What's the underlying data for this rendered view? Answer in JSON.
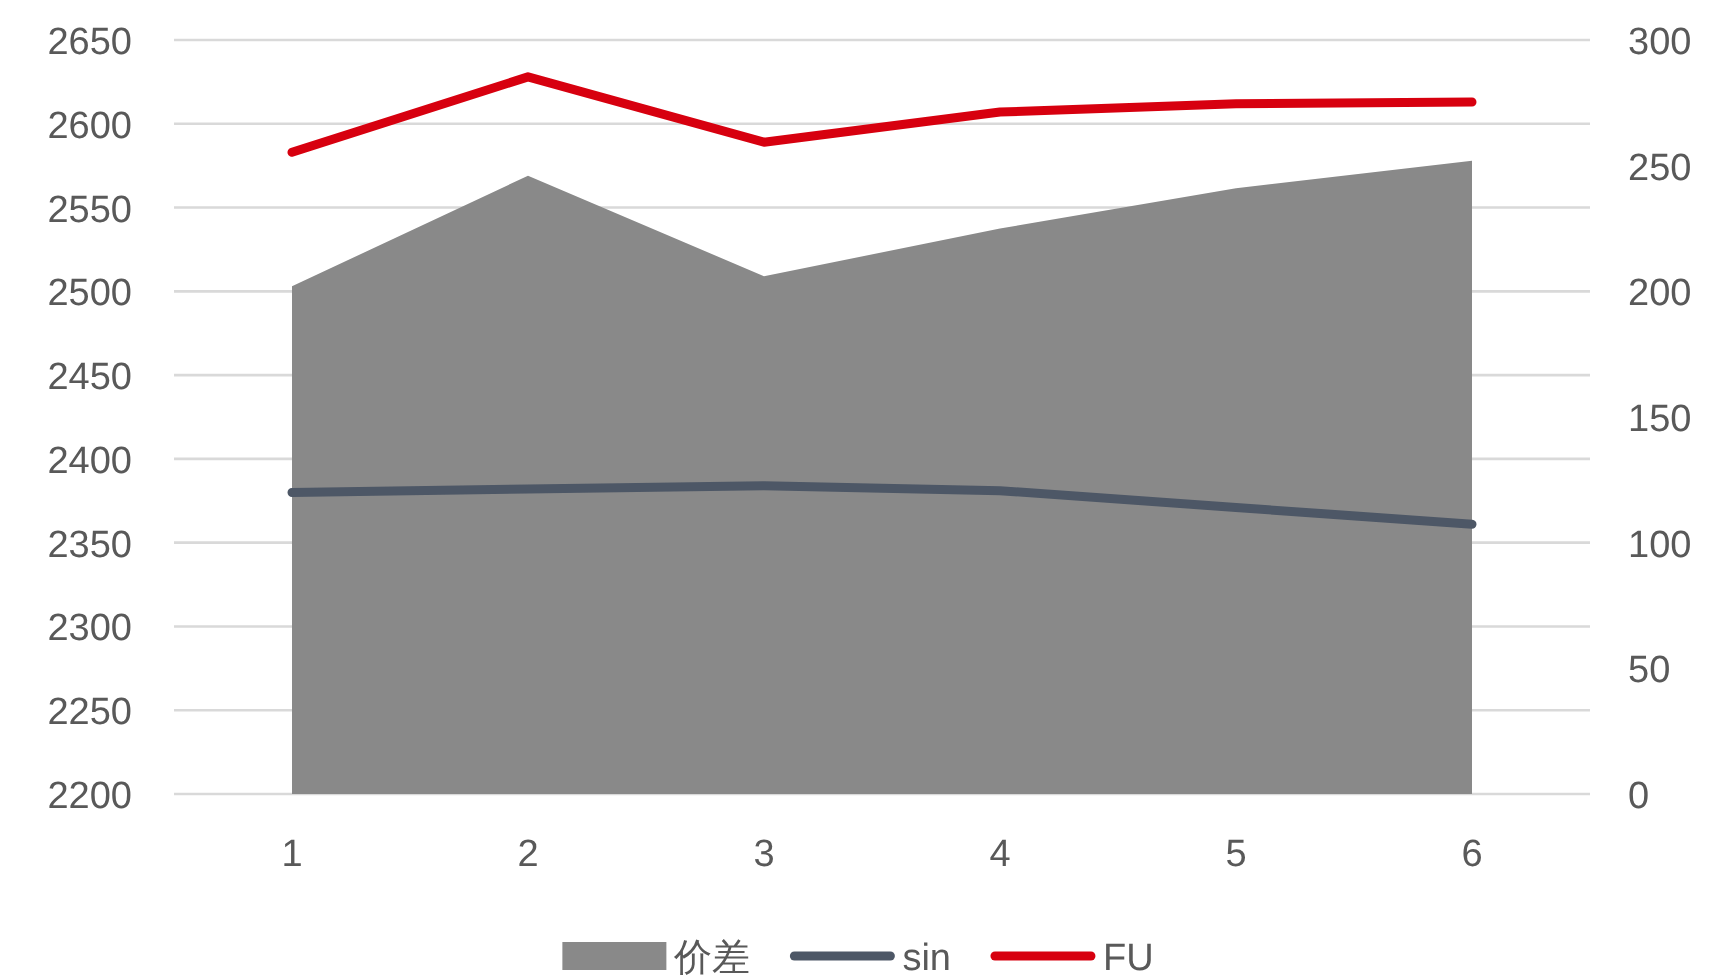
{
  "chart_data": {
    "type": "line",
    "categories": [
      "1",
      "2",
      "3",
      "4",
      "5",
      "6"
    ],
    "series": [
      {
        "name": "价差",
        "type": "area",
        "axis": "y2",
        "color": "#898989",
        "values": [
          202,
          246,
          206,
          225,
          241,
          252
        ]
      },
      {
        "name": "sin",
        "type": "line",
        "color": "#4d5766",
        "values": [
          2380,
          2382,
          2384,
          2381,
          2371,
          2361
        ]
      },
      {
        "name": "FU",
        "type": "line",
        "color": "#d7000f",
        "values": [
          2583,
          2628,
          2589,
          2607,
          2612,
          2613
        ]
      }
    ],
    "ylim": [
      2200,
      2650
    ],
    "yticks": [
      2200,
      2250,
      2300,
      2350,
      2400,
      2450,
      2500,
      2550,
      2600,
      2650
    ],
    "y2lim": [
      0,
      300
    ],
    "y2ticks": [
      0,
      50,
      100,
      150,
      200,
      250,
      300
    ],
    "grid": "y",
    "legend": "bottom",
    "marker": "none",
    "line_style": "solid"
  }
}
